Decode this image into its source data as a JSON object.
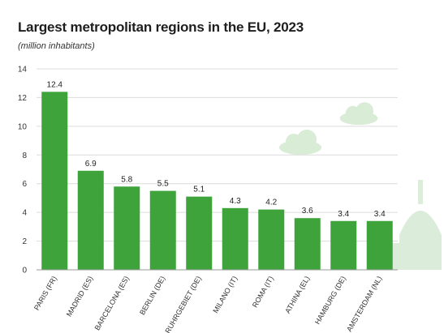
{
  "chart_data": {
    "type": "bar",
    "title": "Largest metropolitan regions in the EU, 2023",
    "subtitle": "(million inhabitants)",
    "categories": [
      "PARIS (FR)",
      "MADRID (ES)",
      "BARCELONA (ES)",
      "BERLIN (DE)",
      "RUHRGEBIET (DE)",
      "MILANO (IT)",
      "ROMA (IT)",
      "ATHINA (EL)",
      "HAMBURG (DE)",
      "AMSTERDAM (NL)"
    ],
    "values": [
      12.4,
      6.9,
      5.8,
      5.5,
      5.1,
      4.3,
      4.2,
      3.6,
      3.4,
      3.4
    ],
    "value_labels": [
      "12.4",
      "6.9",
      "5.8",
      "5.5",
      "5.1",
      "4.3",
      "4.2",
      "3.6",
      "3.4",
      "3.4"
    ],
    "yticks": [
      "0",
      "2",
      "4",
      "6",
      "8",
      "10",
      "12",
      "14"
    ],
    "ylim": [
      0,
      14
    ],
    "grid": true,
    "bar_color": "#3da33a",
    "grid_color": "#dcdcdc",
    "decoration_color": "#d8ecd6"
  }
}
